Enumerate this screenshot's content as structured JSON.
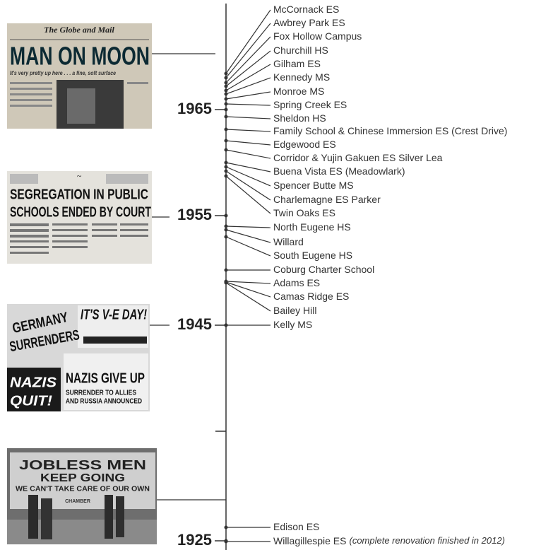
{
  "timeline": {
    "years": [
      "1965",
      "1955",
      "1945",
      "1925"
    ],
    "schools": [
      "McCornack ES",
      "Awbrey Park ES",
      "Fox Hollow Campus",
      "Churchill HS",
      "Gilham ES",
      "Kennedy MS",
      "Monroe MS",
      "Spring Creek ES",
      "Sheldon HS",
      "Family School & Chinese Immersion ES (Crest Drive)",
      "Edgewood ES",
      "Corridor & Yujin Gakuen ES Silver Lea",
      "Buena Vista ES (Meadowlark)",
      "Spencer Butte MS",
      "Charlemagne ES Parker",
      "Twin Oaks ES",
      "North Eugene HS",
      "Willard",
      "South Eugene HS",
      "Coburg Charter School",
      "Adams ES",
      "Camas Ridge ES",
      "Bailey Hill",
      "Kelly MS",
      "Edison ES",
      "Willagillespie ES"
    ],
    "school_note": "(complete renovation finished in 2012)"
  },
  "images": [
    {
      "masthead": "The Globe and Mail",
      "headline": "MAN ON MOON",
      "subhead": "It's very pretty up here . . . a fine, soft surface"
    },
    {
      "headline": [
        "SEGREGATION IN PUBLIC",
        "SCHOOLS ENDED BY COURT"
      ]
    },
    {
      "headline": [
        "GERMANY",
        "SURRENDERS",
        "IT'S V-E DAY!",
        "NAZIS GIVE UP",
        "SURRENDER TO ALLIES",
        "AND RUSSIA ANNOUNCED",
        "NAZIS",
        "QUIT!"
      ]
    },
    {
      "headline": [
        "JOBLESS MEN",
        "KEEP GOING",
        "WE CAN'T TAKE CARE OF OUR OWN",
        "CHAMBER"
      ]
    }
  ]
}
